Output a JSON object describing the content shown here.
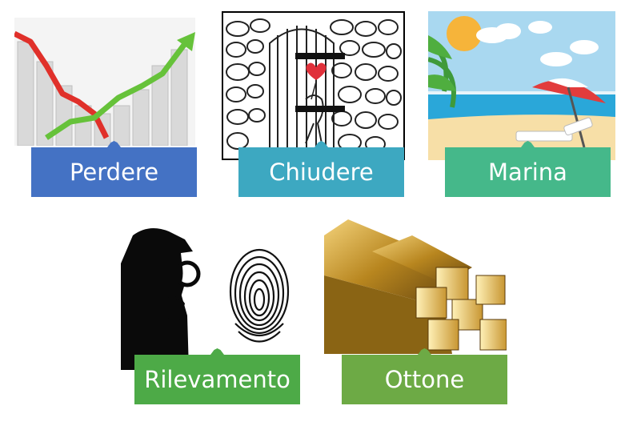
{
  "cards": [
    {
      "word": "Perdere",
      "color": "#4472C4",
      "image": "declining-chart-icon"
    },
    {
      "word": "Chiudere",
      "color": "#3DA8C1",
      "image": "closing-door-icon"
    },
    {
      "word": "Marina",
      "color": "#45B88A",
      "image": "beach-umbrella-icon"
    },
    {
      "word": "Rilevamento",
      "color": "#4DAA47",
      "image": "detective-fingerprint-icon"
    },
    {
      "word": "Ottone",
      "color": "#6DAA45",
      "image": "brass-bars-icon"
    }
  ]
}
